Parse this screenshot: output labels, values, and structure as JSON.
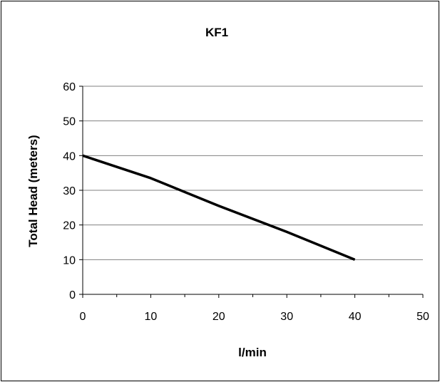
{
  "chart_data": {
    "type": "line",
    "title": "KF1",
    "xlabel": "l/min",
    "ylabel": "Total Head (meters)",
    "xlim": [
      0,
      50
    ],
    "ylim": [
      0,
      60
    ],
    "x_ticks": [
      0,
      10,
      20,
      30,
      40,
      50
    ],
    "y_ticks": [
      0,
      10,
      20,
      30,
      40,
      50,
      60
    ],
    "grid": "horizontal",
    "legend": "none",
    "series": [
      {
        "x": [
          0,
          10,
          20,
          30,
          40
        ],
        "values": [
          40,
          33.5,
          25.5,
          18,
          10
        ],
        "color": "#000000"
      }
    ]
  }
}
